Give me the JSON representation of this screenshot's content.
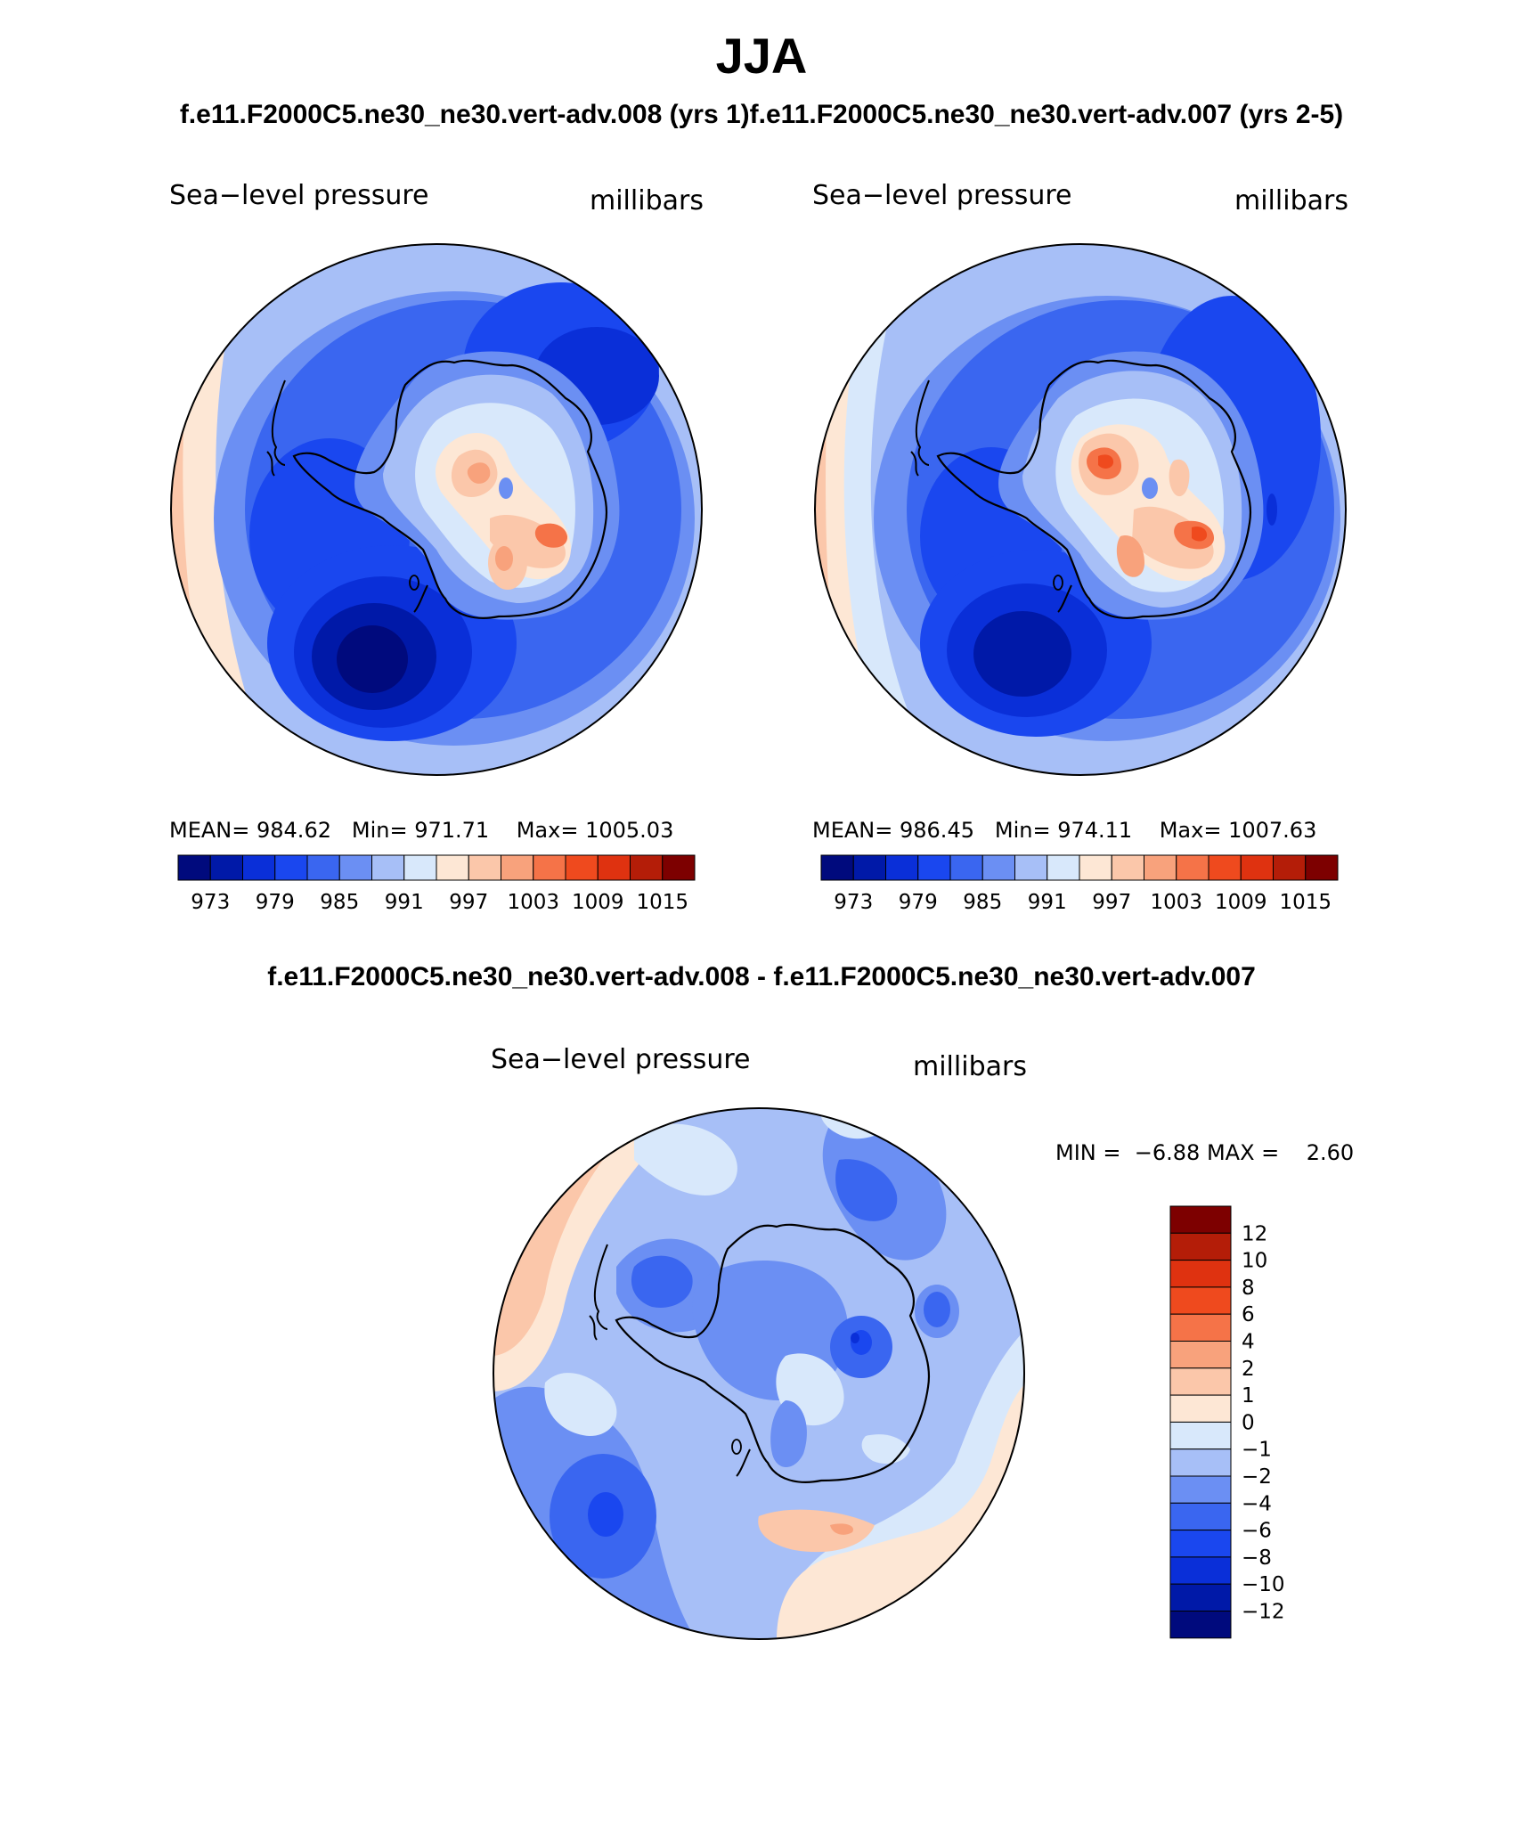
{
  "title": "JJA",
  "case_title_left": "f.e11.F2000C5.ne30_ne30.vert-adv.008 (yrs 1)",
  "case_title_right": "f.e11.F2000C5.ne30_ne30.vert-adv.007 (yrs 2-5)",
  "diff_title": "f.e11.F2000C5.ne30_ne30.vert-adv.008 - f.e11.F2000C5.ne30_ne30.vert-adv.007",
  "colors": {
    "abs_palette": [
      "#000a7d",
      "#0019a8",
      "#0a2fd8",
      "#1a47ef",
      "#3a66f0",
      "#6b8ff3",
      "#a7bff7",
      "#d8e8fb",
      "#fde7d5",
      "#fbc7aa",
      "#f8a27c",
      "#f57348",
      "#ef4a1e",
      "#df3210",
      "#b41d08",
      "#7d0000"
    ],
    "diff_palette": [
      "#000a7d",
      "#0019a8",
      "#0a2fd8",
      "#1a47ef",
      "#3a66f0",
      "#6b8ff3",
      "#a7bff7",
      "#d8e8fb",
      "#fde7d5",
      "#fbc7aa",
      "#f8a27c",
      "#f57348",
      "#ef4a1e",
      "#df3210",
      "#b41d08",
      "#7d0000"
    ]
  },
  "chart_data": [
    {
      "type": "heatmap",
      "projection": "south-polar-stereographic",
      "variable": "Sea−level pressure",
      "units": "millibars",
      "mean": "984.62",
      "min": "971.71",
      "max": "1005.03",
      "mean_label": "MEAN=",
      "min_label": "Min=",
      "max_label": "Max=",
      "colorbar_levels": [
        "973",
        "979",
        "985",
        "991",
        "997",
        "1003",
        "1009",
        "1015"
      ]
    },
    {
      "type": "heatmap",
      "projection": "south-polar-stereographic",
      "variable": "Sea−level pressure",
      "units": "millibars",
      "mean": "986.45",
      "min": "974.11",
      "max": "1007.63",
      "mean_label": "MEAN=",
      "min_label": "Min=",
      "max_label": "Max=",
      "colorbar_levels": [
        "973",
        "979",
        "985",
        "991",
        "997",
        "1003",
        "1009",
        "1015"
      ]
    },
    {
      "type": "heatmap",
      "projection": "south-polar-stereographic",
      "variable": "Sea−level pressure",
      "units": "millibars",
      "min_label": "MIN =",
      "min": "−6.88",
      "max_label": "MAX =",
      "max": "2.60",
      "colorbar_levels": [
        "12",
        "10",
        "8",
        "6",
        "4",
        "2",
        "1",
        "0",
        "−1",
        "−2",
        "−4",
        "−6",
        "−8",
        "−10",
        "−12"
      ]
    }
  ]
}
